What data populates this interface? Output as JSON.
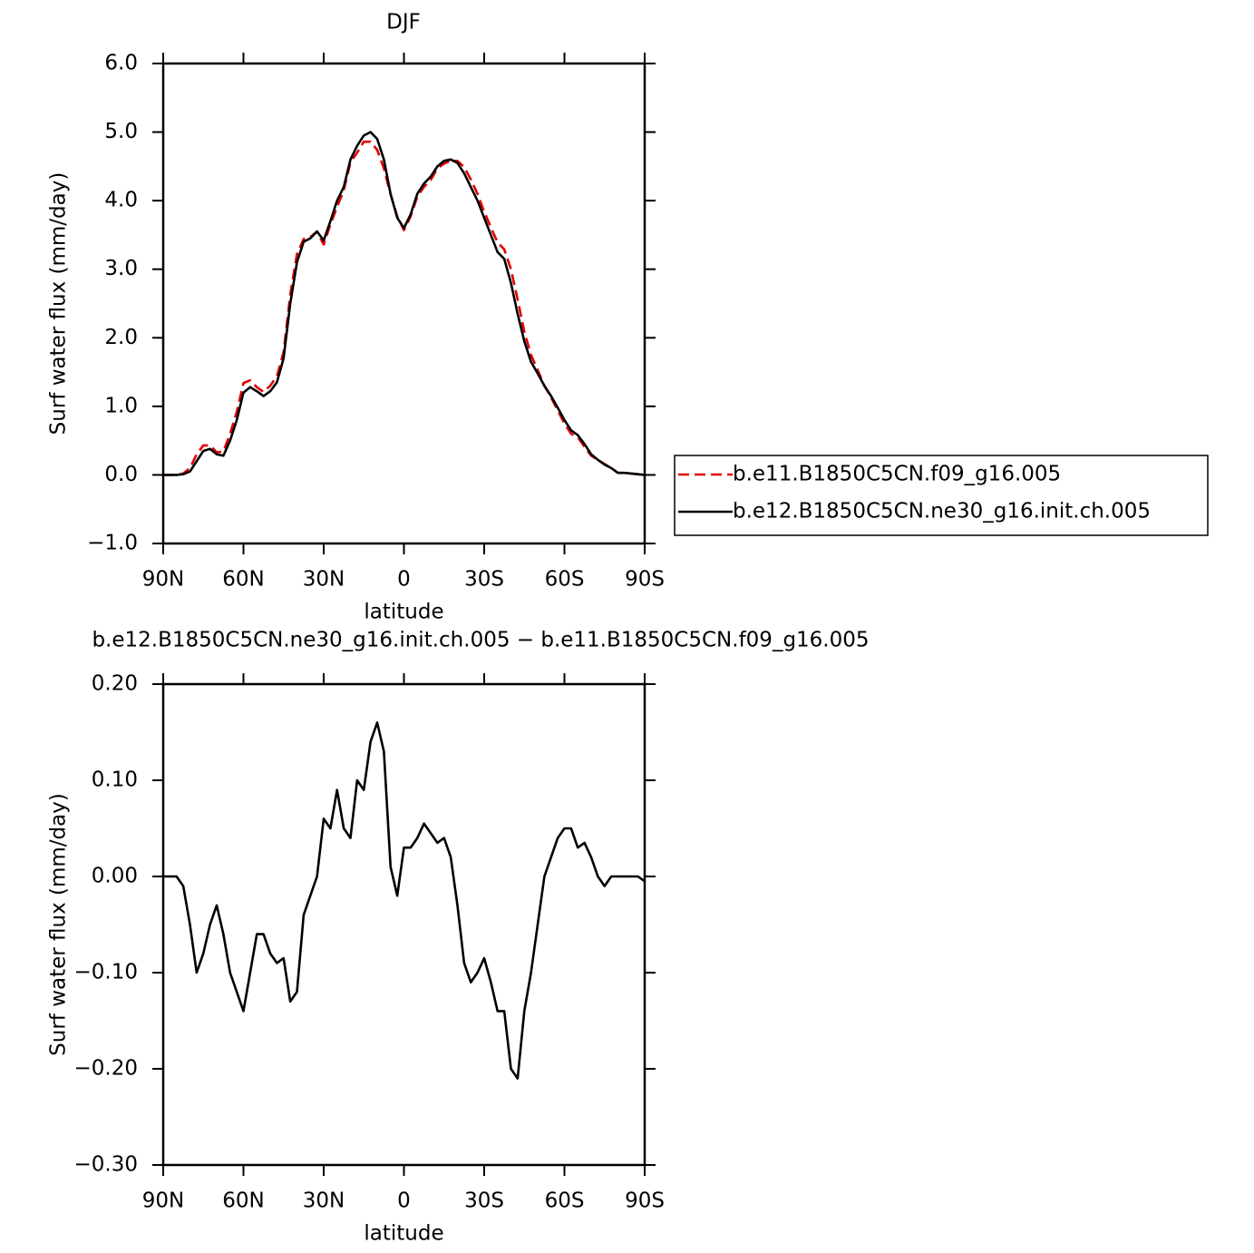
{
  "chart_data": [
    {
      "type": "line",
      "title": "DJF",
      "xlabel": "latitude",
      "ylabel": "Surf water flux (mm/day)",
      "x": [
        90,
        87.5,
        85,
        82.5,
        80,
        77.5,
        75,
        72.5,
        70,
        67.5,
        65,
        62.5,
        60,
        57.5,
        55,
        52.5,
        50,
        47.5,
        45,
        42.5,
        40,
        37.5,
        35,
        32.5,
        30,
        27.5,
        25,
        22.5,
        20,
        17.5,
        15,
        12.5,
        10,
        7.5,
        5,
        2.5,
        0,
        -2.5,
        -5,
        -7.5,
        -10,
        -12.5,
        -15,
        -17.5,
        -20,
        -22.5,
        -25,
        -27.5,
        -30,
        -32.5,
        -35,
        -37.5,
        -40,
        -42.5,
        -45,
        -47.5,
        -50,
        -52.5,
        -55,
        -57.5,
        -60,
        -62.5,
        -65,
        -67.5,
        -70,
        -72.5,
        -75,
        -77.5,
        -80,
        -82.5,
        -85,
        -87.5,
        -90
      ],
      "xlim": [
        90,
        -90
      ],
      "xticks": [
        {
          "value": 90,
          "label": "90N"
        },
        {
          "value": 60,
          "label": "60N"
        },
        {
          "value": 30,
          "label": "30N"
        },
        0,
        {
          "value": -30,
          "label": "30S"
        },
        {
          "value": -60,
          "label": "60S"
        },
        {
          "value": -90,
          "label": "90S"
        }
      ],
      "ylim": [
        -1,
        6
      ],
      "yticks": [
        {
          "value": -1,
          "label": "−1.0"
        },
        {
          "value": 0,
          "label": "0.0"
        },
        {
          "value": 1,
          "label": "1.0"
        },
        {
          "value": 2,
          "label": "2.0"
        },
        {
          "value": 3,
          "label": "3.0"
        },
        {
          "value": 4,
          "label": "4.0"
        },
        {
          "value": 5,
          "label": "5.0"
        },
        {
          "value": 6,
          "label": "6.0"
        }
      ],
      "legend": "right",
      "series": [
        {
          "name": "b.e11.B1850C5CN.f09_g16.005",
          "color": "#e00000",
          "style": "dashed",
          "values": [
            0,
            0,
            0,
            0.02,
            0.1,
            0.3,
            0.43,
            0.43,
            0.33,
            0.34,
            0.6,
            0.92,
            1.34,
            1.38,
            1.28,
            1.21,
            1.3,
            1.44,
            1.79,
            2.63,
            3.22,
            3.44,
            3.47,
            3.55,
            3.36,
            3.65,
            3.91,
            4.15,
            4.56,
            4.7,
            4.86,
            4.86,
            4.74,
            4.47,
            4.09,
            3.77,
            3.57,
            3.77,
            4.06,
            4.2,
            4.3,
            4.47,
            4.54,
            4.58,
            4.58,
            4.49,
            4.31,
            4.1,
            3.84,
            3.61,
            3.39,
            3.29,
            3.0,
            2.56,
            2.09,
            1.75,
            1.53,
            1.3,
            1.13,
            0.94,
            0.75,
            0.6,
            0.55,
            0.41,
            0.28,
            0.22,
            0.16,
            0.1,
            0.03,
            0.03,
            0.02,
            0.01,
            0
          ]
        },
        {
          "name": "b.e12.B1850C5CN.ne30_g16.init.ch.005",
          "color": "#000000",
          "style": "solid",
          "values": [
            0,
            0,
            0,
            0.01,
            0.05,
            0.2,
            0.35,
            0.38,
            0.3,
            0.28,
            0.5,
            0.8,
            1.2,
            1.28,
            1.22,
            1.15,
            1.22,
            1.35,
            1.7,
            2.5,
            3.1,
            3.4,
            3.45,
            3.55,
            3.42,
            3.7,
            4.0,
            4.2,
            4.6,
            4.8,
            4.95,
            5.0,
            4.9,
            4.6,
            4.1,
            3.75,
            3.6,
            3.8,
            4.1,
            4.25,
            4.35,
            4.5,
            4.58,
            4.6,
            4.55,
            4.4,
            4.2,
            4.0,
            3.75,
            3.5,
            3.25,
            3.15,
            2.8,
            2.35,
            1.95,
            1.65,
            1.48,
            1.3,
            1.15,
            0.98,
            0.8,
            0.65,
            0.58,
            0.45,
            0.3,
            0.22,
            0.15,
            0.1,
            0.03,
            0.03,
            0.02,
            0.01,
            0
          ]
        }
      ]
    },
    {
      "type": "line",
      "title": "b.e12.B1850C5CN.ne30_g16.init.ch.005 − b.e11.B1850C5CN.f09_g16.005",
      "xlabel": "latitude",
      "ylabel": "Surf water flux (mm/day)",
      "x": [
        90,
        87.5,
        85,
        82.5,
        80,
        77.5,
        75,
        72.5,
        70,
        67.5,
        65,
        62.5,
        60,
        57.5,
        55,
        52.5,
        50,
        47.5,
        45,
        42.5,
        40,
        37.5,
        35,
        32.5,
        30,
        27.5,
        25,
        22.5,
        20,
        17.5,
        15,
        12.5,
        10,
        7.5,
        5,
        2.5,
        0,
        -2.5,
        -5,
        -7.5,
        -10,
        -12.5,
        -15,
        -17.5,
        -20,
        -22.5,
        -25,
        -27.5,
        -30,
        -32.5,
        -35,
        -37.5,
        -40,
        -42.5,
        -45,
        -47.5,
        -50,
        -52.5,
        -55,
        -57.5,
        -60,
        -62.5,
        -65,
        -67.5,
        -70,
        -72.5,
        -75,
        -77.5,
        -80,
        -82.5,
        -85,
        -87.5,
        -90
      ],
      "xlim": [
        90,
        -90
      ],
      "xticks": [
        {
          "value": 90,
          "label": "90N"
        },
        {
          "value": 60,
          "label": "60N"
        },
        {
          "value": 30,
          "label": "30N"
        },
        0,
        {
          "value": -30,
          "label": "30S"
        },
        {
          "value": -60,
          "label": "60S"
        },
        {
          "value": -90,
          "label": "90S"
        }
      ],
      "ylim": [
        -0.3,
        0.2
      ],
      "yticks": [
        {
          "value": -0.3,
          "label": "−0.30"
        },
        {
          "value": -0.2,
          "label": "−0.20"
        },
        {
          "value": -0.1,
          "label": "−0.10"
        },
        {
          "value": 0,
          "label": "0.00"
        },
        {
          "value": 0.1,
          "label": "0.10"
        },
        {
          "value": 0.2,
          "label": "0.20"
        }
      ],
      "series": [
        {
          "color": "#000000",
          "style": "solid",
          "values": [
            0,
            0,
            0,
            -0.01,
            -0.05,
            -0.1,
            -0.08,
            -0.05,
            -0.03,
            -0.06,
            -0.1,
            -0.12,
            -0.14,
            -0.1,
            -0.06,
            -0.06,
            -0.08,
            -0.09,
            -0.085,
            -0.13,
            -0.12,
            -0.04,
            -0.02,
            0,
            0.06,
            0.05,
            0.09,
            0.05,
            0.04,
            0.1,
            0.09,
            0.14,
            0.16,
            0.13,
            0.01,
            -0.02,
            0.03,
            0.03,
            0.04,
            0.055,
            0.045,
            0.035,
            0.04,
            0.02,
            -0.03,
            -0.09,
            -0.11,
            -0.1,
            -0.085,
            -0.11,
            -0.14,
            -0.14,
            -0.2,
            -0.21,
            -0.14,
            -0.1,
            -0.05,
            0,
            0.02,
            0.04,
            0.05,
            0.05,
            0.03,
            0.035,
            0.02,
            0,
            -0.01,
            0,
            0,
            0,
            0,
            0,
            -0.005
          ]
        }
      ]
    }
  ]
}
